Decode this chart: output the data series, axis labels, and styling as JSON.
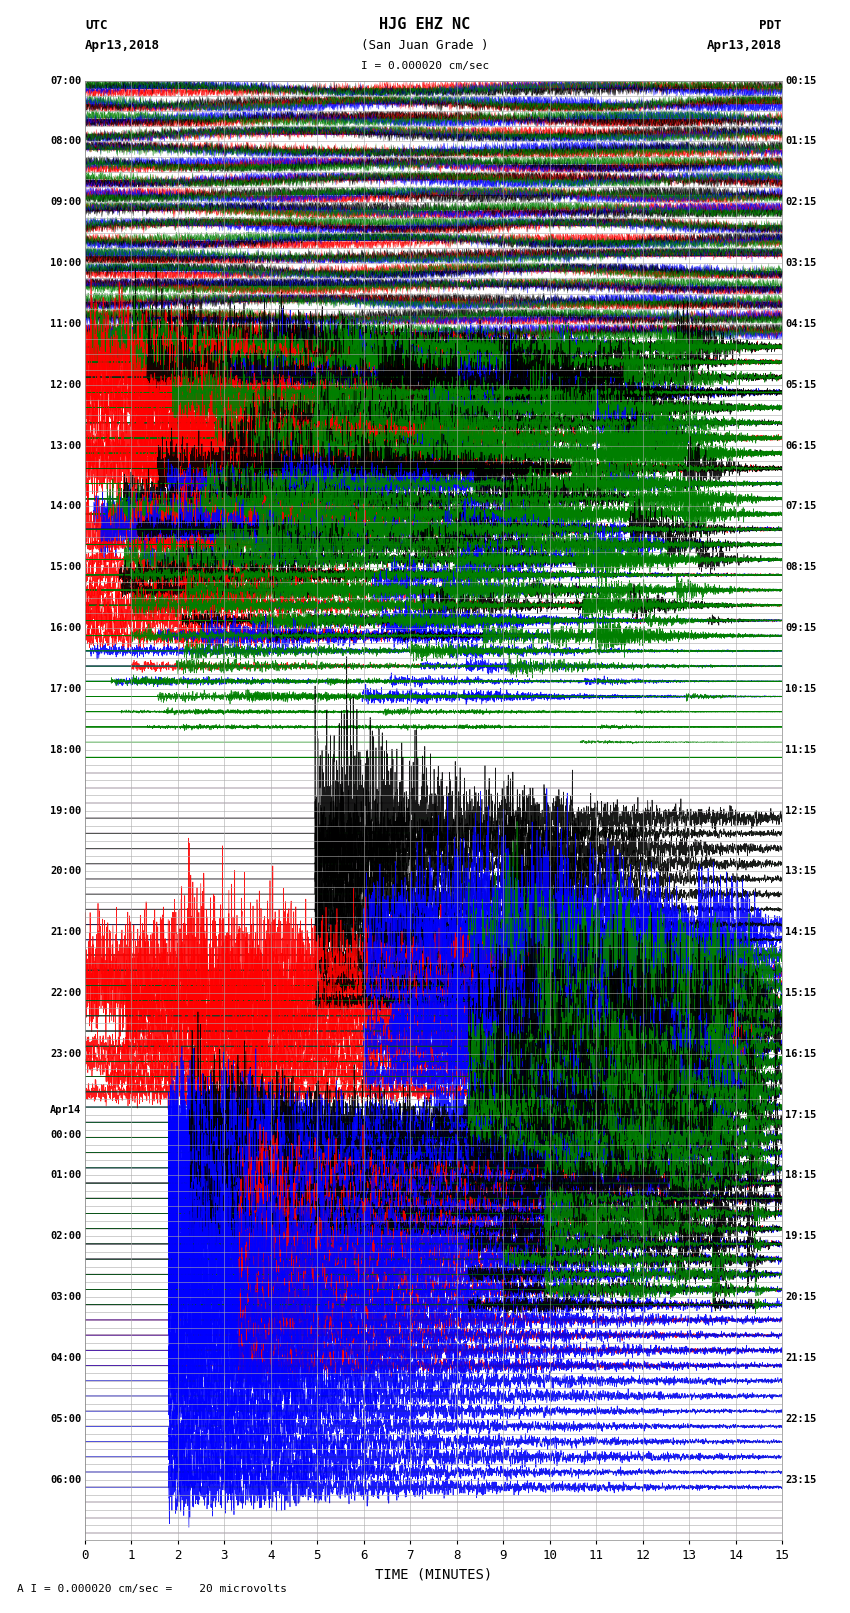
{
  "title_line1": "HJG EHZ NC",
  "title_line2": "(San Juan Grade )",
  "scale_label": "I = 0.000020 cm/sec",
  "utc_label": "UTC",
  "utc_date": "Apr13,2018",
  "pdt_label": "PDT",
  "pdt_date": "Apr13,2018",
  "xlabel": "TIME (MINUTES)",
  "footer": "A I = 0.000020 cm/sec =    20 microvolts",
  "xlim": [
    0,
    15
  ],
  "xticks": [
    0,
    1,
    2,
    3,
    4,
    5,
    6,
    7,
    8,
    9,
    10,
    11,
    12,
    13,
    14,
    15
  ],
  "bg_color": "#ffffff",
  "grid_color": "#aaaaaa",
  "trace_colors": [
    "red",
    "blue",
    "black",
    "green"
  ],
  "utc_times": [
    "07:00",
    "",
    "",
    "",
    "08:00",
    "",
    "",
    "",
    "09:00",
    "",
    "",
    "",
    "10:00",
    "",
    "",
    "",
    "11:00",
    "",
    "",
    "",
    "12:00",
    "",
    "",
    "",
    "13:00",
    "",
    "",
    "",
    "14:00",
    "",
    "",
    "",
    "15:00",
    "",
    "",
    "",
    "16:00",
    "",
    "",
    "",
    "17:00",
    "",
    "",
    "",
    "18:00",
    "",
    "",
    "",
    "19:00",
    "",
    "",
    "",
    "20:00",
    "",
    "",
    "",
    "21:00",
    "",
    "",
    "",
    "22:00",
    "",
    "",
    "",
    "23:00",
    "",
    "",
    "",
    "Apr14",
    "00:00",
    "",
    "",
    "01:00",
    "",
    "",
    "",
    "02:00",
    "",
    "",
    "",
    "03:00",
    "",
    "",
    "",
    "04:00",
    "",
    "",
    "",
    "05:00",
    "",
    "",
    "",
    "06:00",
    "",
    "",
    ""
  ],
  "pdt_times": [
    "00:15",
    "",
    "",
    "",
    "01:15",
    "",
    "",
    "",
    "02:15",
    "",
    "",
    "",
    "03:15",
    "",
    "",
    "",
    "04:15",
    "",
    "",
    "",
    "05:15",
    "",
    "",
    "",
    "06:15",
    "",
    "",
    "",
    "07:15",
    "",
    "",
    "",
    "08:15",
    "",
    "",
    "",
    "09:15",
    "",
    "",
    "",
    "10:15",
    "",
    "",
    "",
    "11:15",
    "",
    "",
    "",
    "12:15",
    "",
    "",
    "",
    "13:15",
    "",
    "",
    "",
    "14:15",
    "",
    "",
    "",
    "15:15",
    "",
    "",
    "",
    "16:15",
    "",
    "",
    "",
    "17:15",
    "",
    "",
    "",
    "18:15",
    "",
    "",
    "",
    "19:15",
    "",
    "",
    "",
    "20:15",
    "",
    "",
    "",
    "21:15",
    "",
    "",
    "",
    "22:15",
    "",
    "",
    "",
    "23:15",
    "",
    "",
    ""
  ],
  "n_rows": 96,
  "figsize": [
    8.5,
    16.13
  ],
  "dpi": 100
}
